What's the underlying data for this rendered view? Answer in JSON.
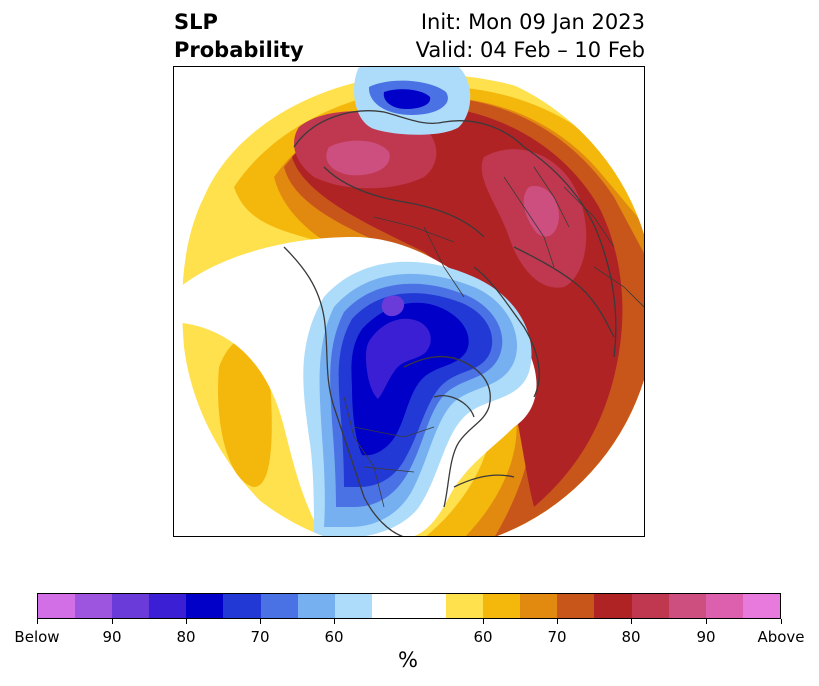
{
  "title": {
    "left_line1": "SLP",
    "left_line2": "Probability",
    "right_line1": "Init: Mon 09 Jan 2023",
    "right_line2": "Valid: 04 Feb – 10 Feb"
  },
  "colorbar": {
    "units": "%",
    "colors": [
      "#d36fe6",
      "#9d55e0",
      "#6a3bd9",
      "#3a1fd4",
      "#0000c8",
      "#2339d6",
      "#4b72e4",
      "#76b0f0",
      "#addcfb",
      "#ffffff",
      "#ffe04d",
      "#f4b70c",
      "#e28a10",
      "#c8561b",
      "#b02325",
      "#c0384f",
      "#cc4f80",
      "#dc60ad",
      "#e87ade"
    ],
    "tick_labels": [
      "Below",
      "90",
      "80",
      "70",
      "60",
      "60",
      "70",
      "80",
      "90",
      "Above"
    ]
  },
  "map": {
    "legend_categories": [
      "below-normal-probability",
      "above-normal-probability"
    ]
  }
}
